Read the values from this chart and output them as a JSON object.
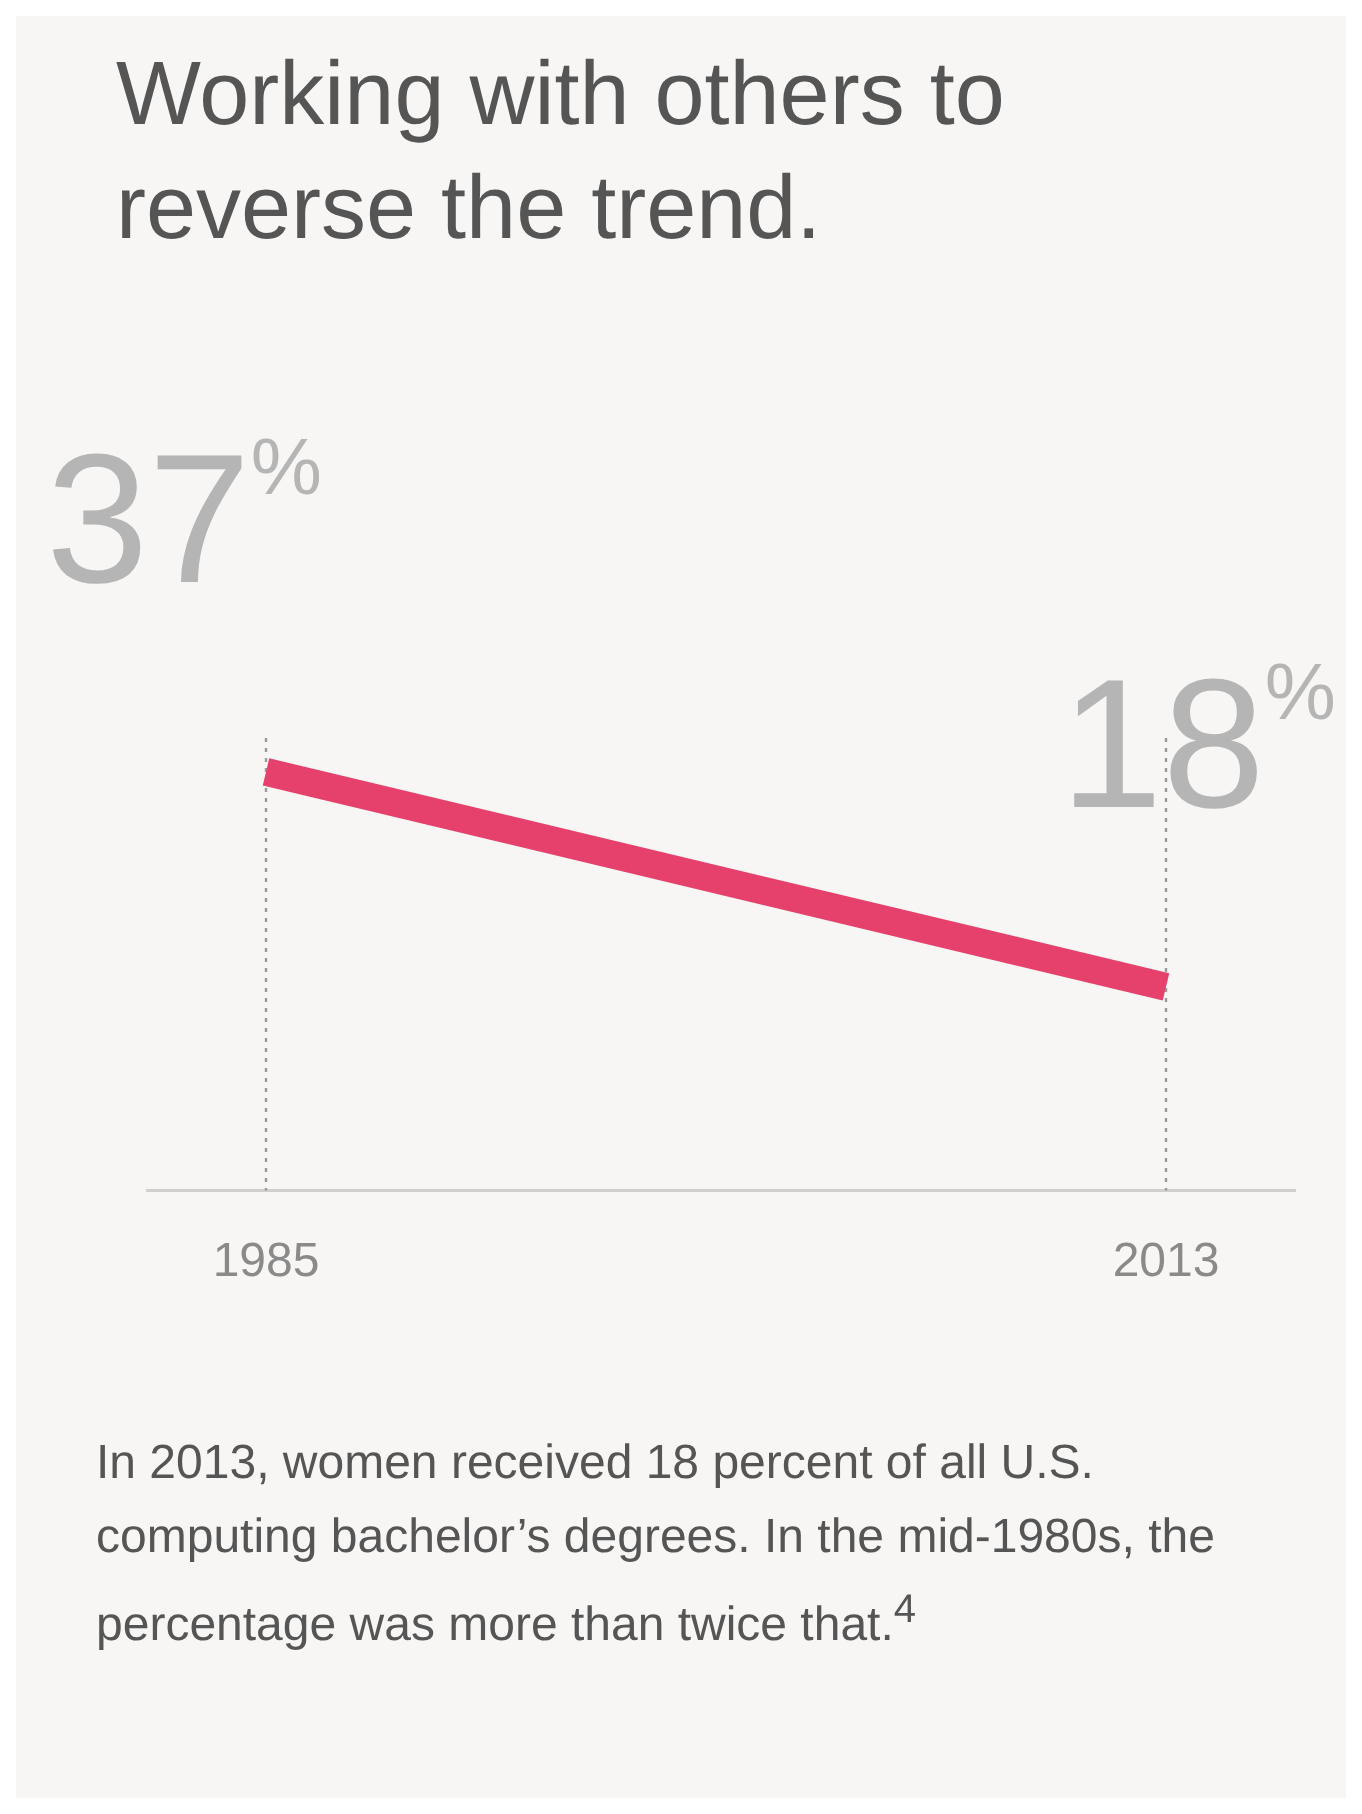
{
  "chart_data": {
    "type": "line",
    "title": "Working with others to reverse the trend.",
    "categories": [
      "1985",
      "2013"
    ],
    "series": [
      {
        "color": "#e5416c",
        "values": [
          37,
          18
        ],
        "value_labels": [
          "37%",
          "18%"
        ]
      }
    ],
    "grid": false,
    "legend": false,
    "marker": "none",
    "tick_labels": "x",
    "ref_lines": [
      {
        "axis": "x",
        "value": "1985",
        "color": "#9a9a9a",
        "line_style": "dotted"
      },
      {
        "axis": "x",
        "value": "2013",
        "color": "#9a9a9a",
        "line_style": "dotted"
      }
    ],
    "annotations": [
      "In 2013, women received 18 percent of all U.S. computing bachelor’s degrees. In the mid-1980s, the percentage was more than twice that.$^{4}$"
    ]
  }
}
